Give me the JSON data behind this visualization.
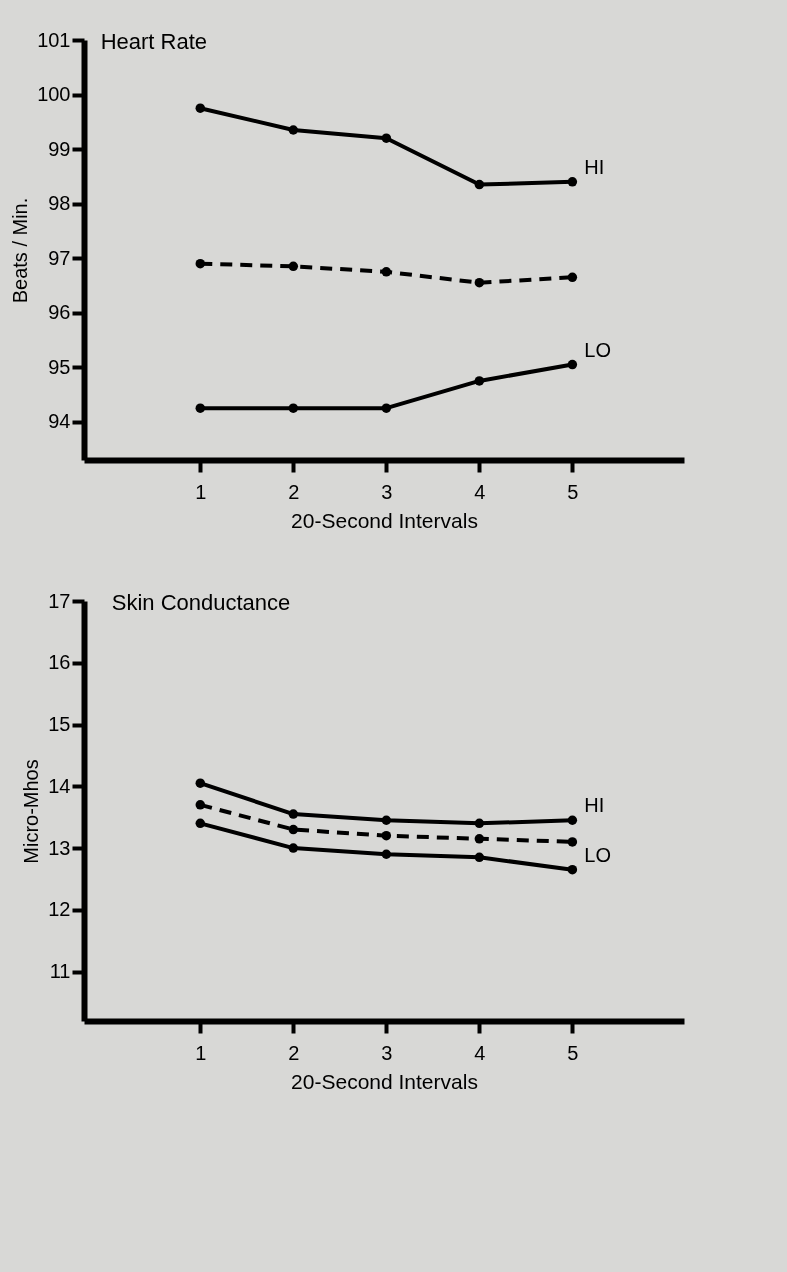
{
  "chart_data": [
    {
      "type": "line",
      "title": "Heart Rate",
      "xlabel": "20-Second Intervals",
      "ylabel": "Beats / Min.",
      "x": [
        1,
        2,
        3,
        4,
        5
      ],
      "xlim": [
        -0.25,
        6.2
      ],
      "xticks": [
        1,
        2,
        3,
        4,
        5
      ],
      "ylim": [
        93.3,
        101
      ],
      "yticks": [
        94,
        95,
        96,
        97,
        98,
        99,
        100,
        101
      ],
      "marker": "circle",
      "series": [
        {
          "name": "HI",
          "color": "#000000",
          "line_style": "solid",
          "values": [
            99.75,
            99.35,
            99.2,
            98.35,
            98.4
          ]
        },
        {
          "color": "#000000",
          "line_style": "dashed",
          "values": [
            96.9,
            96.85,
            96.75,
            96.55,
            96.65
          ]
        },
        {
          "name": "LO",
          "color": "#000000",
          "line_style": "solid",
          "values": [
            94.25,
            94.25,
            94.25,
            94.75,
            95.05
          ]
        }
      ]
    },
    {
      "type": "line",
      "title": "Skin Conductance",
      "xlabel": "20-Second Intervals",
      "ylabel": "Micro-Mhos",
      "x": [
        1,
        2,
        3,
        4,
        5
      ],
      "xlim": [
        -0.25,
        6.2
      ],
      "xticks": [
        1,
        2,
        3,
        4,
        5
      ],
      "ylim": [
        10.2,
        17
      ],
      "yticks": [
        11,
        12,
        13,
        14,
        15,
        16,
        17
      ],
      "marker": "circle",
      "series": [
        {
          "name": "HI",
          "color": "#000000",
          "line_style": "solid",
          "values": [
            14.05,
            13.55,
            13.45,
            13.4,
            13.45
          ]
        },
        {
          "color": "#000000",
          "line_style": "dashed",
          "values": [
            13.7,
            13.3,
            13.2,
            13.15,
            13.1
          ]
        },
        {
          "name": "LO",
          "color": "#000000",
          "line_style": "solid",
          "values": [
            13.4,
            13.0,
            12.9,
            12.85,
            12.65
          ]
        }
      ]
    }
  ]
}
